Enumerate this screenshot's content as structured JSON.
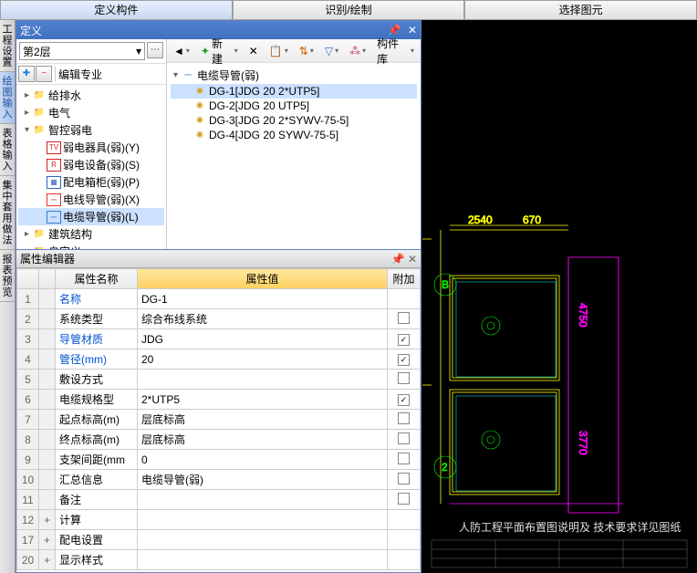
{
  "topTabs": [
    "定义构件",
    "识别/绘制",
    "选择图元"
  ],
  "activeTopTab": 0,
  "sideTabs": [
    "工程设置",
    "绘图输入",
    "表格输入",
    "集中套用做法",
    "报表预览"
  ],
  "activeSideTab": 1,
  "definition": {
    "title": "定义",
    "floor": "第2层",
    "editProfession": "编辑专业",
    "tree": [
      {
        "level": 0,
        "twist": "▸",
        "icon": "fold",
        "label": "给排水"
      },
      {
        "level": 0,
        "twist": "▸",
        "icon": "fold",
        "label": "电气"
      },
      {
        "level": 0,
        "twist": "▾",
        "icon": "fold",
        "label": "智控弱电"
      },
      {
        "level": 1,
        "twist": "",
        "icon": "TV",
        "iconColor": "#d02020",
        "label": "弱电器具(弱)(Y)"
      },
      {
        "level": 1,
        "twist": "",
        "icon": "R",
        "iconColor": "#d02020",
        "label": "弱电设备(弱)(S)"
      },
      {
        "level": 1,
        "twist": "",
        "icon": "▦",
        "iconColor": "#3060c0",
        "label": "配电箱柜(弱)(P)"
      },
      {
        "level": 1,
        "twist": "",
        "icon": "⎓",
        "iconColor": "#e03030",
        "label": "电线导管(弱)(X)"
      },
      {
        "level": 1,
        "twist": "",
        "icon": "⎓",
        "iconColor": "#3080d0",
        "label": "电缆导管(弱)(L)",
        "sel": true
      },
      {
        "level": 0,
        "twist": "▸",
        "icon": "fold",
        "label": "建筑结构"
      },
      {
        "level": 0,
        "twist": "▸",
        "icon": "fold",
        "label": "自定义"
      }
    ],
    "toolbar": {
      "new": "新建",
      "lib": "构件库"
    },
    "compRoot": "电缆导管(弱)",
    "comps": [
      {
        "label": "DG-1[JDG 20 2*UTP5]",
        "sel": true
      },
      {
        "label": "DG-2[JDG 20 UTP5]"
      },
      {
        "label": "DG-3[JDG 20 2*SYWV-75-5]"
      },
      {
        "label": "DG-4[JDG 20 SYWV-75-5]"
      }
    ]
  },
  "propEditor": {
    "title": "属性编辑器",
    "headers": {
      "name": "属性名称",
      "value": "属性值",
      "extra": "附加"
    },
    "rows": [
      {
        "n": "1",
        "name": "名称",
        "blue": true,
        "value": "DG-1",
        "chk": null
      },
      {
        "n": "2",
        "name": "系统类型",
        "value": "综合布线系统",
        "chk": false
      },
      {
        "n": "3",
        "name": "导管材质",
        "blue": true,
        "value": "JDG",
        "chk": true
      },
      {
        "n": "4",
        "name": "管径(mm)",
        "blue": true,
        "value": "20",
        "chk": true
      },
      {
        "n": "5",
        "name": "敷设方式",
        "value": "",
        "chk": false
      },
      {
        "n": "6",
        "name": "电缆规格型",
        "value": "2*UTP5",
        "chk": true
      },
      {
        "n": "7",
        "name": "起点标高(m)",
        "value": "层底标高",
        "chk": false
      },
      {
        "n": "8",
        "name": "终点标高(m)",
        "value": "层底标高",
        "chk": false
      },
      {
        "n": "9",
        "name": "支架间距(mm",
        "value": "0",
        "chk": false
      },
      {
        "n": "10",
        "name": "汇总信息",
        "value": "电缆导管(弱)",
        "chk": false
      },
      {
        "n": "11",
        "name": "备注",
        "value": "",
        "chk": false
      },
      {
        "n": "12",
        "exp": "+",
        "name": "计算",
        "value": "",
        "chk": null
      },
      {
        "n": "17",
        "exp": "+",
        "name": "配电设置",
        "value": "",
        "chk": null
      },
      {
        "n": "20",
        "exp": "+",
        "name": "显示样式",
        "value": "",
        "chk": null
      }
    ]
  },
  "colors": {
    "cadYellow": "#ffff00",
    "cadMagenta": "#ff00ff",
    "cadCyan": "#00ffff",
    "cadGreen": "#00ff00",
    "cadWhite": "#e0e0e0",
    "cadRed": "#ff4040"
  }
}
